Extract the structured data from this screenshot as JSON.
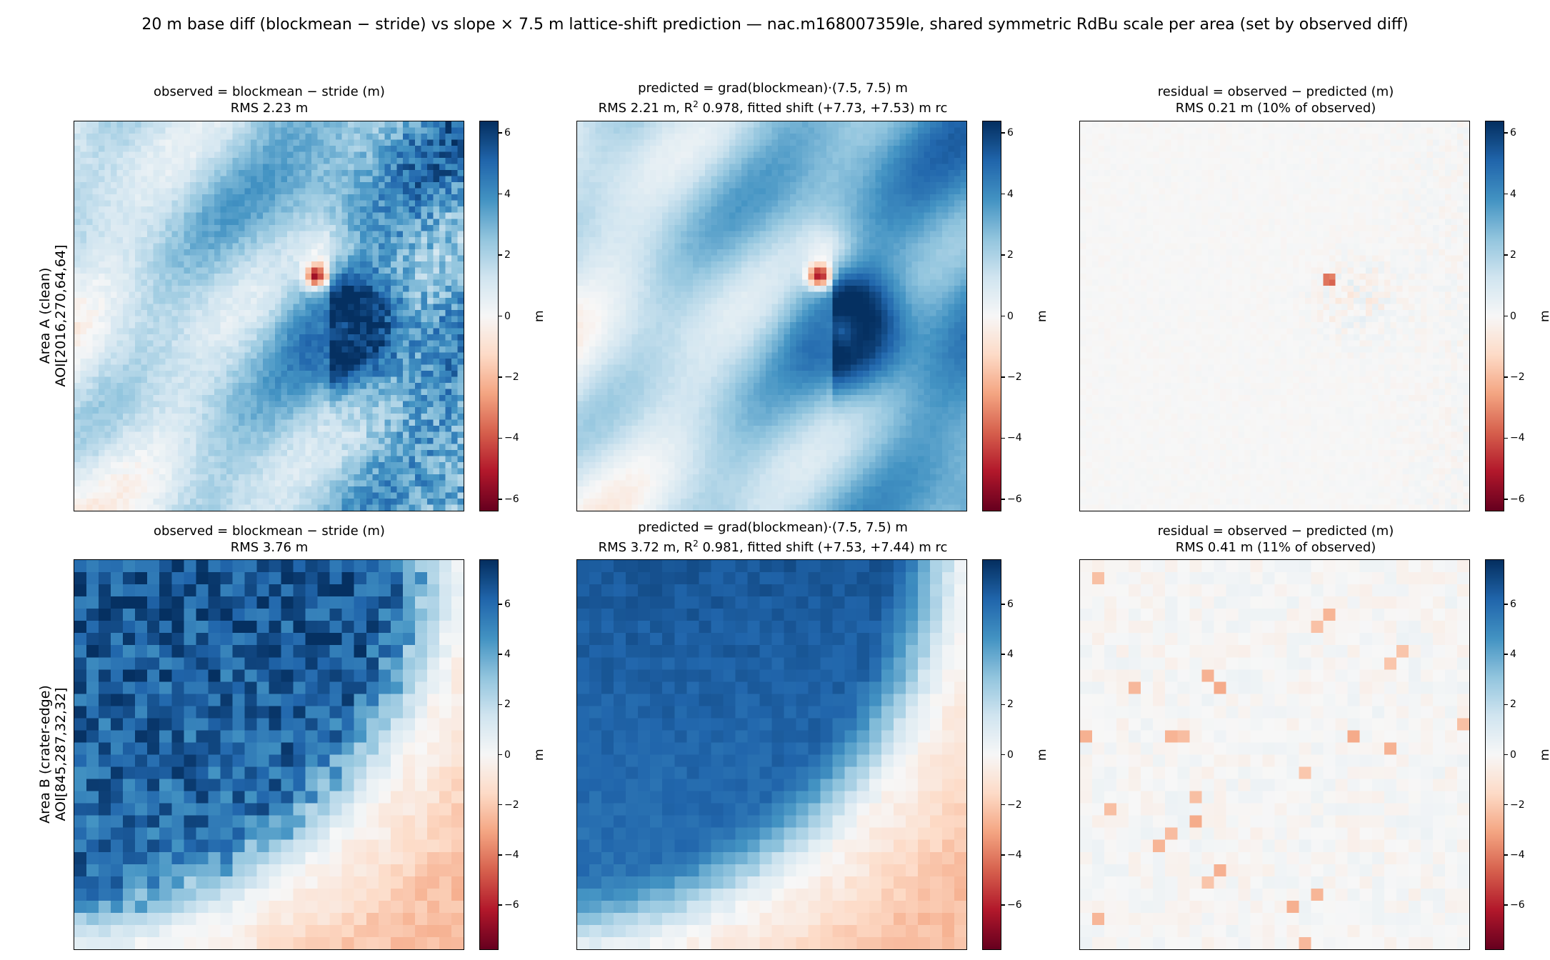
{
  "suptitle": "20 m base diff (blockmean − stride) vs slope × 7.5 m lattice-shift prediction — nac.m168007359le, shared symmetric RdBu scale per area (set by observed diff)",
  "colormap": "RdBu",
  "colorbar_label": "m",
  "rows": [
    {
      "label_line1": "Area A (clean)",
      "label_line2": "AOI[2016,270,64,64]",
      "vlim": [
        -6.4,
        6.4
      ],
      "cbar_ticks": [
        "6",
        "4",
        "2",
        "0",
        "−2",
        "−4",
        "−6"
      ],
      "panels": [
        {
          "title1": "observed = blockmean − stride (m)",
          "title2": "RMS 2.23 m"
        },
        {
          "title1": "predicted = grad(blockmean)·(7.5, 7.5) m",
          "title2a": "RMS 2.21 m, R",
          "title2sup": "2",
          "title2b": " 0.978, fitted shift (+7.73, +7.53) m rc"
        },
        {
          "title1": "residual = observed − predicted (m)",
          "title2": "RMS 0.21 m (10% of observed)"
        }
      ]
    },
    {
      "label_line1": "Area B (crater-edge)",
      "label_line2": "AOI[845,287,32,32]",
      "vlim": [
        -7.8,
        7.8
      ],
      "cbar_ticks": [
        "6",
        "4",
        "2",
        "0",
        "−2",
        "−4",
        "−6"
      ],
      "panels": [
        {
          "title1": "observed = blockmean − stride (m)",
          "title2": "RMS 3.76 m"
        },
        {
          "title1": "predicted = grad(blockmean)·(7.5, 7.5) m",
          "title2a": "RMS 3.72 m, R",
          "title2sup": "2",
          "title2b": " 0.981, fitted shift (+7.53, +7.44) m rc"
        },
        {
          "title1": "residual = observed − predicted (m)",
          "title2": "RMS 0.41 m (11% of observed)"
        }
      ]
    }
  ],
  "chart_data": [
    {
      "type": "heatmap",
      "area": "Area A (clean)",
      "panel": "observed",
      "grid": [
        64,
        64
      ],
      "rms_m": 2.23,
      "vlim": [
        -6.4,
        6.4
      ],
      "colorbar_ticks": [
        6,
        4,
        2,
        0,
        -2,
        -4,
        -6
      ]
    },
    {
      "type": "heatmap",
      "area": "Area A (clean)",
      "panel": "predicted",
      "grid": [
        64,
        64
      ],
      "rms_m": 2.21,
      "r2": 0.978,
      "fitted_shift_m": [
        7.73,
        7.53
      ],
      "vlim": [
        -6.4,
        6.4
      ],
      "colorbar_ticks": [
        6,
        4,
        2,
        0,
        -2,
        -4,
        -6
      ]
    },
    {
      "type": "heatmap",
      "area": "Area A (clean)",
      "panel": "residual",
      "grid": [
        64,
        64
      ],
      "rms_m": 0.21,
      "percent_of_observed": 10,
      "vlim": [
        -6.4,
        6.4
      ],
      "colorbar_ticks": [
        6,
        4,
        2,
        0,
        -2,
        -4,
        -6
      ]
    },
    {
      "type": "heatmap",
      "area": "Area B (crater-edge)",
      "panel": "observed",
      "grid": [
        32,
        32
      ],
      "rms_m": 3.76,
      "vlim": [
        -7.8,
        7.8
      ],
      "colorbar_ticks": [
        6,
        4,
        2,
        0,
        -2,
        -4,
        -6
      ]
    },
    {
      "type": "heatmap",
      "area": "Area B (crater-edge)",
      "panel": "predicted",
      "grid": [
        32,
        32
      ],
      "rms_m": 3.72,
      "r2": 0.981,
      "fitted_shift_m": [
        7.53,
        7.44
      ],
      "vlim": [
        -7.8,
        7.8
      ],
      "colorbar_ticks": [
        6,
        4,
        2,
        0,
        -2,
        -4,
        -6
      ]
    },
    {
      "type": "heatmap",
      "area": "Area B (crater-edge)",
      "panel": "residual",
      "grid": [
        32,
        32
      ],
      "rms_m": 0.41,
      "percent_of_observed": 11,
      "vlim": [
        -7.8,
        7.8
      ],
      "colorbar_ticks": [
        6,
        4,
        2,
        0,
        -2,
        -4,
        -6
      ]
    }
  ]
}
